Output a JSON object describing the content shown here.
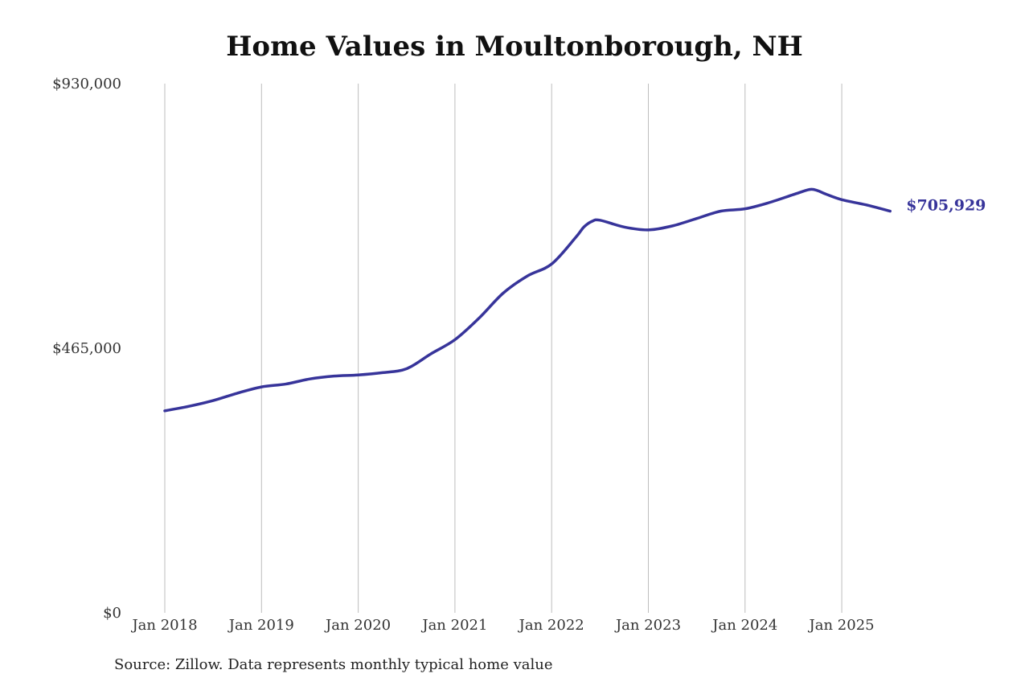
{
  "chart_data": {
    "type": "line",
    "title": "Home Values in Moultonborough, NH",
    "source": "Source: Zillow. Data represents monthly typical home value",
    "xlabel": "",
    "ylabel": "",
    "ylim": [
      0,
      930000
    ],
    "yticks": [
      {
        "value": 0,
        "label": "$0"
      },
      {
        "value": 465000,
        "label": "$465,000"
      },
      {
        "value": 930000,
        "label": "$930,000"
      }
    ],
    "xticks": [
      {
        "value": "2018-01",
        "label": "Jan 2018"
      },
      {
        "value": "2019-01",
        "label": "Jan 2019"
      },
      {
        "value": "2020-01",
        "label": "Jan 2020"
      },
      {
        "value": "2021-01",
        "label": "Jan 2021"
      },
      {
        "value": "2022-01",
        "label": "Jan 2022"
      },
      {
        "value": "2023-01",
        "label": "Jan 2023"
      },
      {
        "value": "2024-01",
        "label": "Jan 2024"
      },
      {
        "value": "2025-01",
        "label": "Jan 2025"
      }
    ],
    "xlim": [
      "2018-01",
      "2025-07"
    ],
    "grid": {
      "vertical": true,
      "horizontal": false
    },
    "line_color": "#37349a",
    "end_label": "$705,929",
    "series": [
      {
        "x": [
          "2018-01",
          "2018-04",
          "2018-07",
          "2018-10",
          "2019-01",
          "2019-04",
          "2019-07",
          "2019-10",
          "2020-01",
          "2020-04",
          "2020-07",
          "2020-10",
          "2021-01",
          "2021-04",
          "2021-07",
          "2021-10",
          "2022-01",
          "2022-04",
          "2022-05",
          "2022-06",
          "2022-07",
          "2022-10",
          "2023-01",
          "2023-04",
          "2023-07",
          "2023-10",
          "2024-01",
          "2024-04",
          "2024-07",
          "2024-09",
          "2024-10",
          "2024-11",
          "2025-01",
          "2025-04",
          "2025-07"
        ],
        "values": [
          355000,
          363000,
          373000,
          386000,
          397000,
          402000,
          411000,
          416000,
          418000,
          422000,
          429000,
          455000,
          480000,
          518000,
          562000,
          592000,
          613000,
          660000,
          678000,
          688000,
          690000,
          678000,
          673000,
          680000,
          693000,
          706000,
          710000,
          721000,
          735000,
          744000,
          742000,
          736000,
          726000,
          717000,
          705929
        ]
      }
    ]
  }
}
